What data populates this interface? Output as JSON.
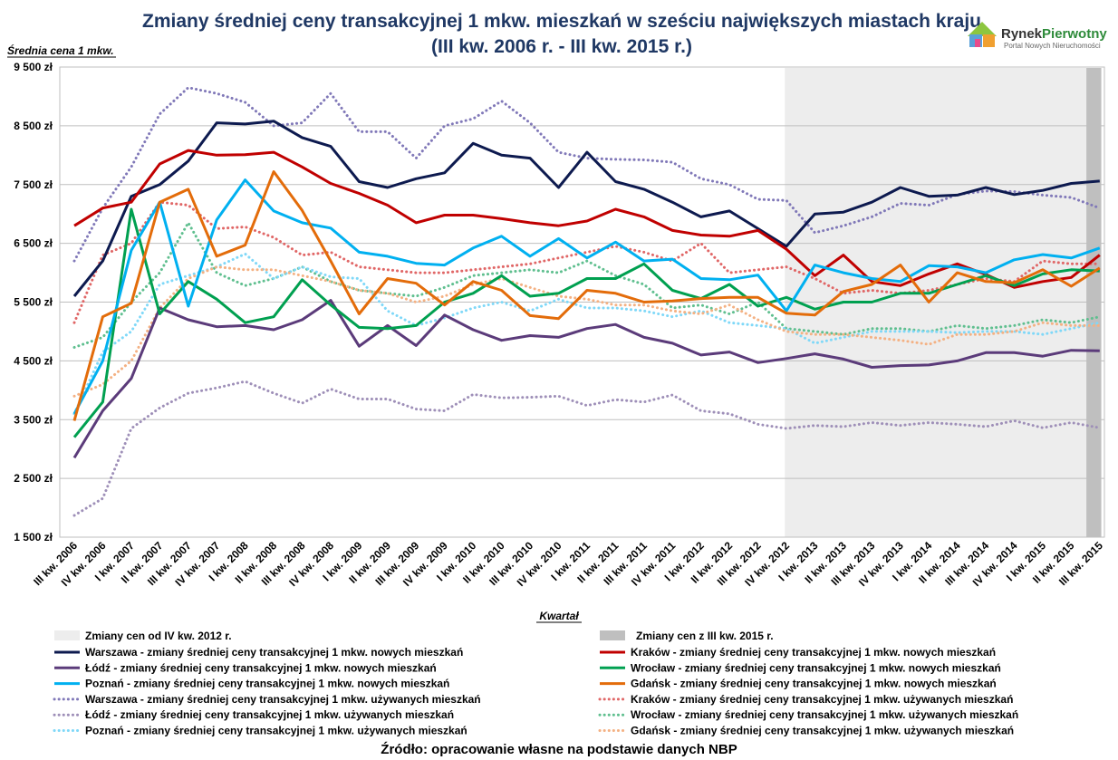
{
  "chart_data": {
    "type": "line",
    "title_line1": "Zmiany średniej ceny transakcyjnej 1 mkw. mieszkań w sześciu największych miastach kraju",
    "title_line2": "(III kw. 2006 r. - III kw. 2015 r.)",
    "ylabel": "Średnia cena 1 mkw.",
    "xlabel": "Kwartał",
    "ylim": [
      1500,
      9500
    ],
    "yticks": [
      "9 500 zł",
      "8 500 zł",
      "7 500 zł",
      "6 500 zł",
      "5 500 zł",
      "4 500 zł",
      "3 500 zł",
      "2 500 zł",
      "1 500 zł"
    ],
    "ytick_values": [
      9500,
      8500,
      7500,
      6500,
      5500,
      4500,
      3500,
      2500,
      1500
    ],
    "categories": [
      "III kw. 2006",
      "IV kw. 2006",
      "I kw. 2007",
      "II kw. 2007",
      "III kw. 2007",
      "IV kw. 2007",
      "I kw. 2008",
      "II kw. 2008",
      "III kw. 2008",
      "IV kw. 2008",
      "I kw. 2009",
      "II kw. 2009",
      "III kw. 2009",
      "IV kw. 2009",
      "I kw. 2010",
      "II kw. 2010",
      "III kw. 2010",
      "IV kw. 2010",
      "I kw. 2011",
      "II kw. 2011",
      "III kw. 2011",
      "IV kw. 2011",
      "I kw. 2012",
      "II kw. 2012",
      "III kw. 2012",
      "IV kw. 2012",
      "I kw. 2013",
      "II kw. 2013",
      "III kw. 2013",
      "IV kw. 2013",
      "I kw. 2014",
      "II kw. 2014",
      "III kw. 2014",
      "IV kw. 2014",
      "I kw. 2015",
      "II kw. 2015",
      "III kw. 2015"
    ],
    "shaded_ranges": [
      {
        "name": "Zmiany cen od IV kw. 2012 r.",
        "from": "IV kw. 2012",
        "to": "III kw. 2015",
        "color": "#ededed"
      },
      {
        "name": "Zmiany cen z III kw. 2015 r.",
        "from": "III kw. 2015",
        "to": "III kw. 2015",
        "color": "#bfbfbf"
      }
    ],
    "series": [
      {
        "name": "Warszawa - zmiany średniej ceny transakcyjnej 1 mkw. nowych mieszkań",
        "color": "#0d1a4f",
        "dash": "solid",
        "values": [
          5600,
          6200,
          7300,
          7500,
          7900,
          8550,
          8530,
          8580,
          8300,
          8150,
          7550,
          7450,
          7600,
          7700,
          8200,
          8000,
          7950,
          7450,
          8050,
          7550,
          7420,
          7200,
          6950,
          7050,
          6750,
          6450,
          7000,
          7030,
          7200,
          7450,
          7300,
          7320,
          7450,
          7330,
          7400,
          7520,
          7560
        ]
      },
      {
        "name": "Kraków - zmiany średniej ceny transakcyjnej 1 mkw. nowych mieszkań",
        "color": "#c00000",
        "dash": "solid",
        "values": [
          6800,
          7100,
          7200,
          7850,
          8080,
          8000,
          8010,
          8050,
          7800,
          7520,
          7350,
          7150,
          6850,
          6980,
          6980,
          6920,
          6850,
          6800,
          6880,
          7080,
          6950,
          6720,
          6640,
          6620,
          6720,
          6400,
          5950,
          6300,
          5850,
          5780,
          5980,
          6150,
          5970,
          5750,
          5850,
          5920,
          6300
        ]
      },
      {
        "name": "Łódź - zmiany średniej ceny transakcyjnej 1 mkw. nowych mieszkań",
        "color": "#5b3b7a",
        "dash": "solid",
        "values": [
          2850,
          3650,
          4200,
          5400,
          5200,
          5080,
          5100,
          5030,
          5200,
          5530,
          4750,
          5100,
          4760,
          5280,
          5030,
          4850,
          4930,
          4900,
          5050,
          5120,
          4900,
          4800,
          4600,
          4650,
          4470,
          4540,
          4620,
          4530,
          4390,
          4420,
          4430,
          4500,
          4640,
          4640,
          4580,
          4680,
          4670
        ]
      },
      {
        "name": "Wrocław - zmiany średniej ceny transakcyjnej 1 mkw. nowych mieszkań",
        "color": "#00a050",
        "dash": "solid",
        "values": [
          3200,
          3800,
          7080,
          5300,
          5850,
          5550,
          5150,
          5250,
          5880,
          5450,
          5070,
          5050,
          5100,
          5500,
          5650,
          5950,
          5600,
          5650,
          5900,
          5900,
          6150,
          5700,
          5560,
          5800,
          5430,
          5580,
          5380,
          5500,
          5500,
          5650,
          5650,
          5800,
          5950,
          5780,
          5980,
          6050,
          6030
        ]
      },
      {
        "name": "Poznań - zmiany średniej ceny transakcyjnej 1 mkw. nowych mieszkań",
        "color": "#00b0f0",
        "dash": "solid",
        "values": [
          3600,
          4500,
          6380,
          7200,
          5430,
          6900,
          7580,
          7050,
          6850,
          6760,
          6350,
          6280,
          6160,
          6130,
          6420,
          6620,
          6280,
          6580,
          6250,
          6520,
          6200,
          6230,
          5900,
          5880,
          5960,
          5350,
          6130,
          6000,
          5900,
          5850,
          6120,
          6100,
          6000,
          6220,
          6310,
          6250,
          6420
        ]
      },
      {
        "name": "Gdańsk - zmiany średniej ceny transakcyjnej 1 mkw. nowych mieszkań",
        "color": "#e36c0a",
        "dash": "solid",
        "values": [
          3480,
          5250,
          5480,
          7200,
          7420,
          6280,
          6470,
          7720,
          7060,
          6200,
          5300,
          5900,
          5820,
          5450,
          5850,
          5700,
          5270,
          5220,
          5700,
          5650,
          5500,
          5520,
          5560,
          5580,
          5580,
          5310,
          5280,
          5680,
          5800,
          6130,
          5500,
          6000,
          5850,
          5830,
          6050,
          5770,
          6080
        ]
      },
      {
        "name": "Warszawa - zmiany średniej ceny transakcyjnej 1 mkw. używanych mieszkań",
        "color": "#8078b8",
        "dash": "dotted",
        "values": [
          6200,
          7100,
          7800,
          8700,
          9150,
          9050,
          8900,
          8500,
          8550,
          9050,
          8400,
          8400,
          7950,
          8500,
          8620,
          8920,
          8550,
          8050,
          7950,
          7930,
          7920,
          7880,
          7600,
          7500,
          7250,
          7230,
          6680,
          6800,
          6950,
          7180,
          7150,
          7330,
          7390,
          7380,
          7320,
          7280,
          7100
        ]
      },
      {
        "name": "Kraków - zmiany średniej ceny transakcyjnej 1 mkw. używanych mieszkań",
        "color": "#e06666",
        "dash": "dotted",
        "values": [
          5150,
          6300,
          6500,
          7200,
          7150,
          6750,
          6780,
          6600,
          6300,
          6350,
          6100,
          6050,
          6000,
          6000,
          6050,
          6100,
          6150,
          6250,
          6350,
          6450,
          6350,
          6200,
          6500,
          6000,
          6050,
          6100,
          5900,
          5650,
          5700,
          5650,
          5700,
          5800,
          5900,
          5850,
          6200,
          6150,
          6150
        ]
      },
      {
        "name": "Łódź - zmiany średniej ceny transakcyjnej 1 mkw. używanych mieszkań",
        "color": "#9e8fb8",
        "dash": "dotted",
        "values": [
          1870,
          2160,
          3350,
          3700,
          3950,
          4040,
          4150,
          3950,
          3780,
          4020,
          3850,
          3850,
          3680,
          3650,
          3930,
          3870,
          3880,
          3900,
          3740,
          3840,
          3800,
          3920,
          3650,
          3600,
          3420,
          3350,
          3400,
          3380,
          3450,
          3400,
          3450,
          3420,
          3380,
          3480,
          3360,
          3450,
          3360
        ]
      },
      {
        "name": "Wrocław - zmiany średniej ceny transakcyjnej 1 mkw. używanych mieszkań",
        "color": "#5fbf8f",
        "dash": "dotted",
        "values": [
          4730,
          4900,
          5500,
          6000,
          6850,
          6000,
          5780,
          5900,
          6100,
          5850,
          5700,
          5650,
          5600,
          5750,
          5950,
          6000,
          6050,
          6000,
          6200,
          5950,
          5800,
          5400,
          5450,
          5300,
          5500,
          5050,
          5000,
          4950,
          5050,
          5050,
          5000,
          5100,
          5050,
          5100,
          5200,
          5150,
          5250
        ]
      },
      {
        "name": "Poznań - zmiany średniej ceny transakcyjnej 1 mkw. używanych mieszkań",
        "color": "#7fd8f8",
        "dash": "dotted",
        "values": [
          3600,
          4650,
          5000,
          5800,
          5950,
          6100,
          6320,
          5900,
          6100,
          5930,
          5900,
          5350,
          5100,
          5230,
          5400,
          5500,
          5350,
          5550,
          5400,
          5400,
          5350,
          5250,
          5350,
          5150,
          5100,
          5050,
          4800,
          4900,
          5000,
          5000,
          5000,
          4980,
          5000,
          5000,
          4950,
          5050,
          5150
        ]
      },
      {
        "name": "Gdańsk - zmiany średniej ceny transakcyjnej 1 mkw. używanych mieszkań",
        "color": "#f4b183",
        "dash": "dotted",
        "values": [
          3900,
          4100,
          4500,
          5400,
          5900,
          6100,
          6050,
          6050,
          5950,
          5850,
          5700,
          5650,
          5500,
          5600,
          5800,
          5900,
          5750,
          5600,
          5550,
          5450,
          5450,
          5350,
          5300,
          5450,
          5200,
          5000,
          4950,
          4950,
          4900,
          4850,
          4780,
          4950,
          4950,
          5000,
          5150,
          5100,
          5100
        ]
      }
    ]
  },
  "source": "Źródło: opracowanie własne na podstawie danych NBP",
  "logo": {
    "name": "RynekPierwotny",
    "part1": "Rynek",
    "part2": "Pierwotny",
    "tagline": "Portal Nowych Nieruchomości"
  }
}
